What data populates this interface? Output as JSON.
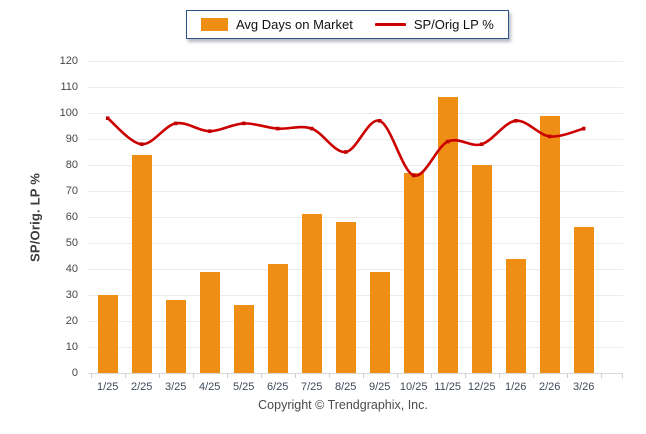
{
  "legend": {
    "bar_label": "Avg Days on Market",
    "line_label": "SP/Orig LP %"
  },
  "footer": {
    "text": "Copyright © Trendgraphix, Inc."
  },
  "chart_data": {
    "type": "bar",
    "subtype": "bar+line combo",
    "categories": [
      "1/25",
      "2/25",
      "3/25",
      "4/25",
      "5/25",
      "6/25",
      "7/25",
      "8/25",
      "9/25",
      "10/25",
      "11/25",
      "12/25",
      "1/26",
      "2/26",
      "3/26"
    ],
    "series": [
      {
        "name": "Avg Days on Market",
        "type": "bar",
        "color": "#ef8e14",
        "values": [
          30,
          84,
          28,
          39,
          26,
          42,
          61,
          58,
          39,
          77,
          106,
          80,
          44,
          99,
          56
        ]
      },
      {
        "name": "SP/Orig LP %",
        "type": "line",
        "color": "#cc0000",
        "values": [
          98,
          88,
          96,
          93,
          96,
          94,
          94,
          85,
          97,
          76,
          89,
          88,
          97,
          91,
          94
        ]
      }
    ],
    "title": "",
    "xlabel": "",
    "ylabel": "SP/Orig. LP %",
    "ylim": [
      0,
      120
    ],
    "ytick_step": 10,
    "yticks": [
      "0",
      "10",
      "20",
      "30",
      "40",
      "50",
      "60",
      "70",
      "80",
      "90",
      "100",
      "110",
      "120"
    ],
    "grid": true,
    "legend_position": "top-center",
    "background": "#ffffff",
    "gridline_color": "#ebebeb"
  }
}
